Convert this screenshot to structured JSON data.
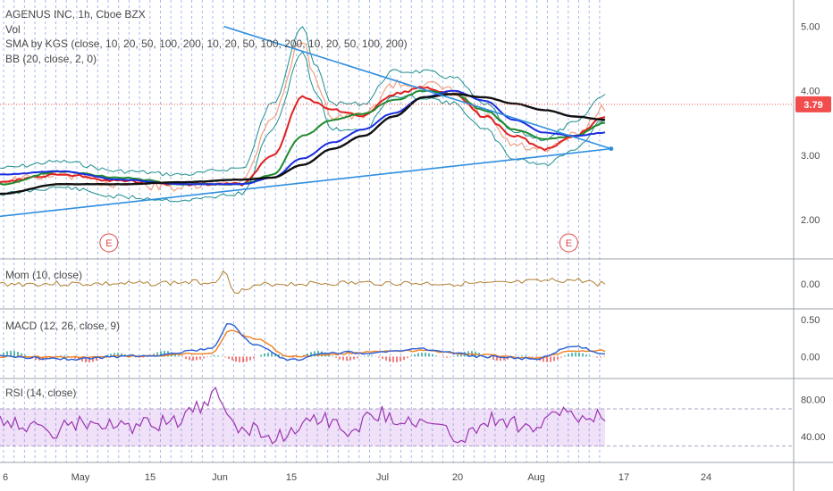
{
  "colors": {
    "grid_dashed": "#5b82d6",
    "price_marker_bg": "#f14d4d",
    "trendline": "#2f8fe0",
    "sma_red": "#e02020",
    "sma_green": "#208a30",
    "sma_blue": "#1a2ee0",
    "sma_black": "#101010",
    "bb": "#1e8e8e",
    "mom": "#b08030",
    "macd": "#2a5fd6",
    "signal": "#f08020",
    "rsi": "#9b35b0",
    "rsi_band": "#f0e0f8",
    "earnings": "#e04545",
    "candle_bg": "#f0a080"
  },
  "panes": {
    "main": {
      "title": "AGENUS INC, 1h, Cboe BZX",
      "studies": [
        "Vol",
        "SMA by KGS (close, 10, 20, 50, 100, 200, 10, 20, 50, 100, 200, 10, 20, 50, 100, 200)",
        "BB (20, close, 2, 0)"
      ],
      "current_price": "3.79",
      "earnings_marker": "E"
    },
    "mom": {
      "title": "Mom (10, close)"
    },
    "macd": {
      "title": "MACD (12, 26, close, 9)"
    },
    "rsi": {
      "title": "RSI (14, close)"
    }
  },
  "chart_data": [
    {
      "type": "line",
      "pane": "price",
      "ylim": [
        1.5,
        5.3
      ],
      "yticks": [
        "5.00",
        "4.00",
        "3.00",
        "2.00"
      ],
      "ytick_values": [
        5.0,
        4.0,
        3.0,
        2.0
      ],
      "x_ticks": [
        "6",
        "May",
        "15",
        "Jun",
        "15",
        "Jul",
        "20",
        "Aug",
        "17",
        "24"
      ],
      "series": [
        {
          "role": "price",
          "x": [
            0,
            10,
            20,
            30,
            40,
            45,
            50,
            52,
            55,
            60,
            65,
            70,
            75,
            80,
            85,
            90,
            95,
            100
          ],
          "values": [
            2.6,
            2.7,
            2.55,
            2.5,
            2.6,
            3.6,
            4.8,
            4.2,
            3.6,
            3.6,
            4.1,
            4.1,
            4.0,
            3.6,
            3.15,
            3.05,
            3.3,
            3.75
          ]
        },
        {
          "role": "sma-20",
          "x": [
            0,
            10,
            20,
            30,
            40,
            45,
            50,
            55,
            60,
            65,
            70,
            75,
            80,
            85,
            90,
            95,
            100
          ],
          "values": [
            2.6,
            2.7,
            2.6,
            2.55,
            2.55,
            3.0,
            3.9,
            3.7,
            3.6,
            3.95,
            4.05,
            3.95,
            3.6,
            3.3,
            3.1,
            3.3,
            3.6
          ]
        },
        {
          "role": "sma-50",
          "x": [
            0,
            10,
            20,
            30,
            40,
            45,
            50,
            55,
            60,
            65,
            70,
            75,
            80,
            85,
            90,
            95,
            100
          ],
          "values": [
            2.55,
            2.75,
            2.65,
            2.55,
            2.55,
            2.7,
            3.3,
            3.55,
            3.65,
            3.85,
            4.0,
            3.95,
            3.7,
            3.4,
            3.25,
            3.3,
            3.5
          ]
        },
        {
          "role": "sma-100",
          "x": [
            0,
            10,
            20,
            30,
            40,
            45,
            50,
            55,
            60,
            65,
            70,
            75,
            80,
            85,
            90,
            95,
            100
          ],
          "values": [
            2.7,
            2.75,
            2.62,
            2.55,
            2.55,
            2.65,
            2.95,
            3.2,
            3.4,
            3.65,
            3.9,
            4.0,
            3.85,
            3.55,
            3.35,
            3.3,
            3.35
          ]
        },
        {
          "role": "sma-200",
          "x": [
            0,
            10,
            20,
            30,
            40,
            45,
            50,
            55,
            60,
            65,
            70,
            75,
            80,
            85,
            90,
            95,
            100
          ],
          "values": [
            2.4,
            2.55,
            2.55,
            2.58,
            2.62,
            2.65,
            2.85,
            3.1,
            3.3,
            3.6,
            3.9,
            3.95,
            3.9,
            3.8,
            3.7,
            3.6,
            3.55
          ]
        }
      ],
      "trendlines": [
        {
          "x": [
            37,
            101
          ],
          "values": [
            5.0,
            3.1
          ]
        },
        {
          "x": [
            0,
            101
          ],
          "values": [
            2.05,
            3.1
          ]
        }
      ]
    },
    {
      "type": "line",
      "pane": "mom",
      "yticks": [
        "0.00"
      ],
      "ytick_values": [
        0
      ],
      "ylim": [
        -1,
        1
      ],
      "series": [
        {
          "name": "",
          "x": [
            0,
            20,
            35,
            37,
            39,
            45,
            60,
            80,
            95,
            100
          ],
          "values": [
            0,
            0,
            0.1,
            0.6,
            -0.4,
            0,
            0.05,
            0,
            0.2,
            0
          ]
        }
      ]
    },
    {
      "type": "line",
      "pane": "macd",
      "yticks": [
        "0.50",
        "0.00"
      ],
      "ytick_values": [
        0.5,
        0
      ],
      "ylim": [
        -0.2,
        0.55
      ],
      "series": [
        {
          "role": "macd",
          "x": [
            0,
            12,
            25,
            35,
            38,
            42,
            48,
            55,
            60,
            70,
            80,
            88,
            95,
            100
          ],
          "values": [
            0,
            -0.03,
            0.02,
            0.1,
            0.45,
            0.15,
            -0.05,
            0.06,
            0.05,
            0.1,
            0,
            -0.03,
            0.13,
            0.05
          ]
        },
        {
          "role": "signal",
          "x": [
            0,
            12,
            25,
            35,
            38,
            42,
            48,
            55,
            60,
            70,
            80,
            88,
            95,
            100
          ],
          "values": [
            0,
            -0.01,
            0.01,
            0.05,
            0.35,
            0.25,
            0,
            0.03,
            0.06,
            0.08,
            0.02,
            -0.02,
            0.08,
            0.08
          ]
        }
      ]
    },
    {
      "type": "line",
      "pane": "rsi",
      "yticks": [
        "80.00",
        "40.00"
      ],
      "ytick_values": [
        80,
        40
      ],
      "ylim": [
        20,
        95
      ],
      "band": [
        30,
        70
      ],
      "series": [
        {
          "name": "",
          "x": [
            0,
            8,
            14,
            20,
            28,
            33,
            36,
            38,
            40,
            46,
            52,
            58,
            62,
            70,
            76,
            82,
            88,
            94,
            96,
            100
          ],
          "values": [
            60,
            45,
            55,
            50,
            55,
            70,
            85,
            60,
            50,
            40,
            62,
            48,
            65,
            55,
            40,
            60,
            50,
            70,
            55,
            62
          ]
        }
      ]
    }
  ]
}
